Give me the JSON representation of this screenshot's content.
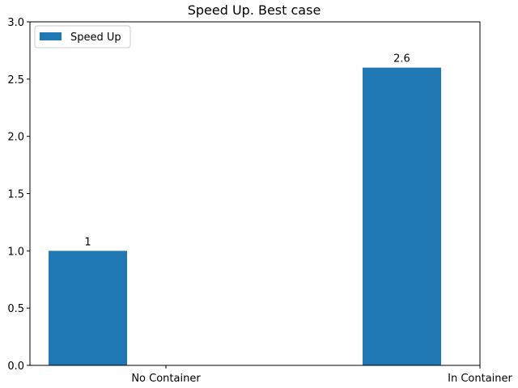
{
  "chart_data": {
    "type": "bar",
    "title": "Speed Up. Best case",
    "xlabel": "",
    "ylabel": "",
    "categories": [
      "No Container",
      "In Container"
    ],
    "series": [
      {
        "name": "Speed Up",
        "values": [
          1,
          2.6
        ],
        "color": "#1f77b4"
      }
    ],
    "data_labels": [
      "1",
      "2.6"
    ],
    "ylim": [
      0,
      3.0
    ],
    "yticks": [
      "0.0",
      "0.5",
      "1.0",
      "1.5",
      "2.0",
      "2.5",
      "3.0"
    ],
    "legend_position": "top-left",
    "grid": false
  }
}
